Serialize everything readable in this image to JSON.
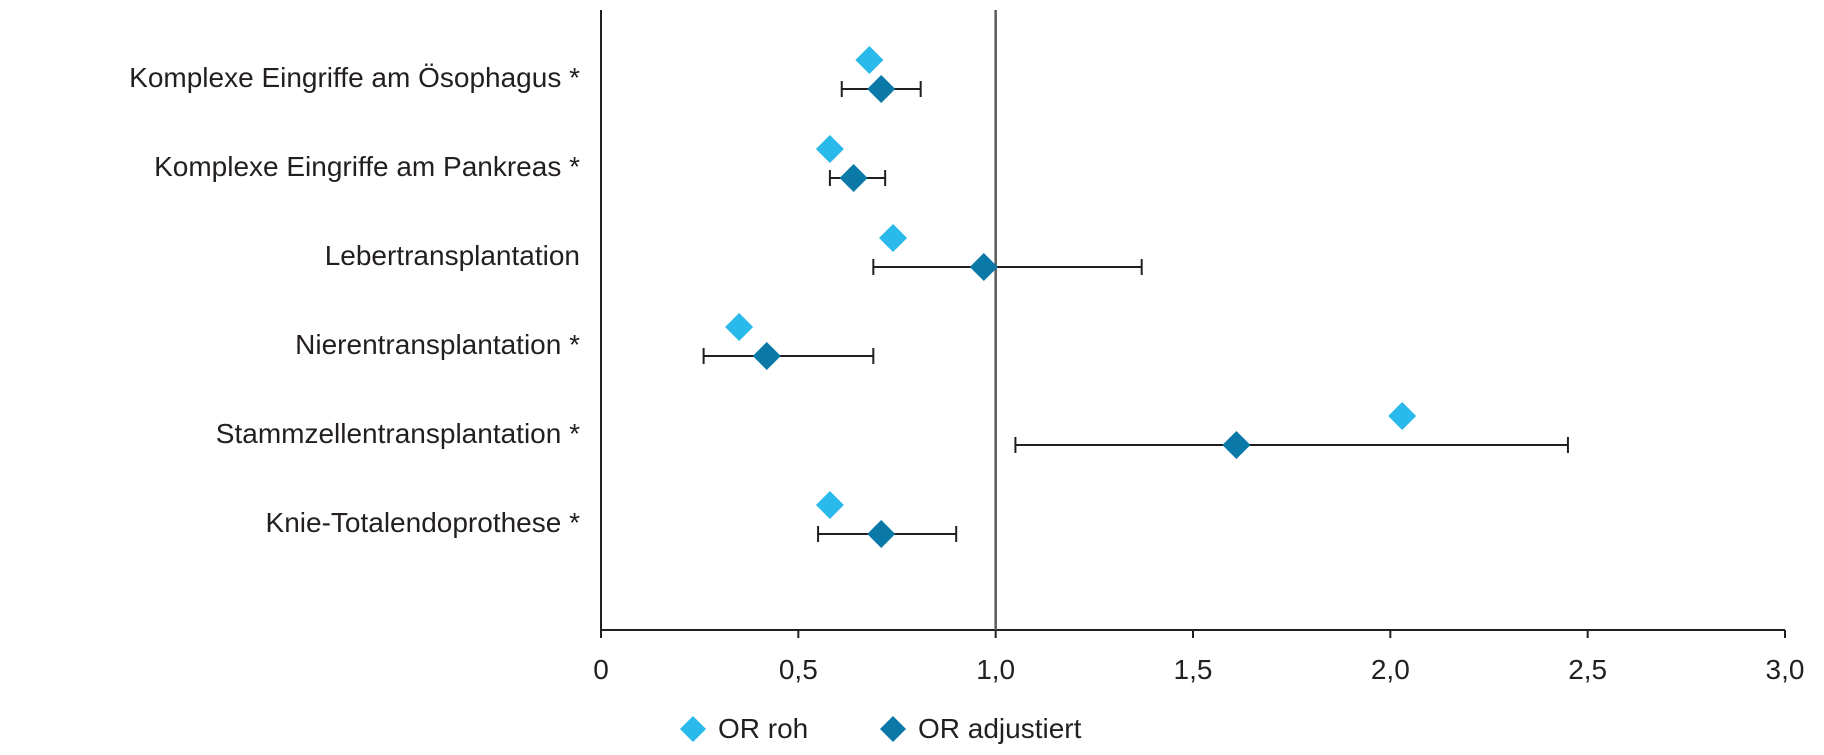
{
  "chart_data": {
    "type": "scatter",
    "title": "",
    "xlabel": "",
    "ylabel": "",
    "xlim": [
      0,
      3.0
    ],
    "x_ticks": [
      0,
      0.5,
      1.0,
      1.5,
      2.0,
      2.5,
      3.0
    ],
    "x_tick_labels": [
      "0",
      "0,5",
      "1,0",
      "1,5",
      "2,0",
      "2,5",
      "3,0"
    ],
    "reference_line": 1.0,
    "grid": false,
    "legend_position": "bottom",
    "categories": [
      "Komplexe Eingriffe am Ösophagus *",
      "Komplexe Eingriffe am Pankreas *",
      "Lebertransplantation",
      "Nierentransplantation *",
      "Stammzellentransplantation *",
      "Knie-Totalendoprothese *"
    ],
    "series": [
      {
        "name": "OR roh",
        "color": "#29b9ea",
        "marker": "diamond",
        "values": [
          0.68,
          0.58,
          0.74,
          0.35,
          2.03,
          0.58
        ]
      },
      {
        "name": "OR adjustiert",
        "color": "#0a79a8",
        "marker": "diamond",
        "values": [
          0.71,
          0.64,
          0.97,
          0.42,
          1.61,
          0.71
        ],
        "ci_lower": [
          0.61,
          0.58,
          0.69,
          0.26,
          1.05,
          0.55
        ],
        "ci_upper": [
          0.81,
          0.72,
          1.37,
          0.69,
          2.45,
          0.9
        ]
      }
    ]
  }
}
